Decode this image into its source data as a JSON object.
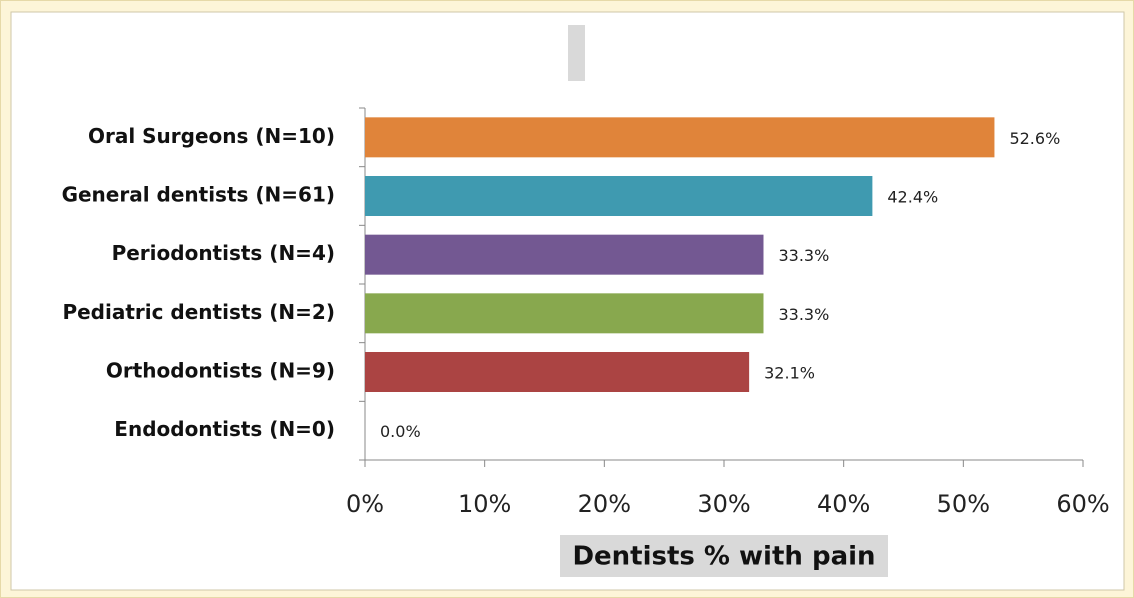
{
  "chart_data": {
    "type": "bar",
    "orientation": "horizontal",
    "categories": [
      "Oral Surgeons (N=10)",
      "General dentists (N=61)",
      "Periodontists (N=4)",
      "Pediatric dentists (N=2)",
      "Orthodontists (N=9)",
      "Endodontists (N=0)"
    ],
    "values": [
      52.6,
      42.4,
      33.3,
      33.3,
      32.1,
      0.0
    ],
    "value_labels": [
      "52.6%",
      "42.4%",
      "33.3%",
      "33.3%",
      "32.1%",
      "0.0%"
    ],
    "colors": [
      "#e0843a",
      "#3f9ab0",
      "#735892",
      "#88a84e",
      "#ab4443",
      "#4f81bd"
    ],
    "xlabel": "Dentists % with pain",
    "xlim": [
      0,
      60
    ],
    "xticks": [
      {
        "value": 0,
        "label": "0%"
      },
      {
        "value": 10,
        "label": "10%"
      },
      {
        "value": 20,
        "label": "20%"
      },
      {
        "value": 30,
        "label": "30%"
      },
      {
        "value": 40,
        "label": "40%"
      },
      {
        "value": 50,
        "label": "50%"
      },
      {
        "value": 60,
        "label": "60%"
      }
    ]
  }
}
